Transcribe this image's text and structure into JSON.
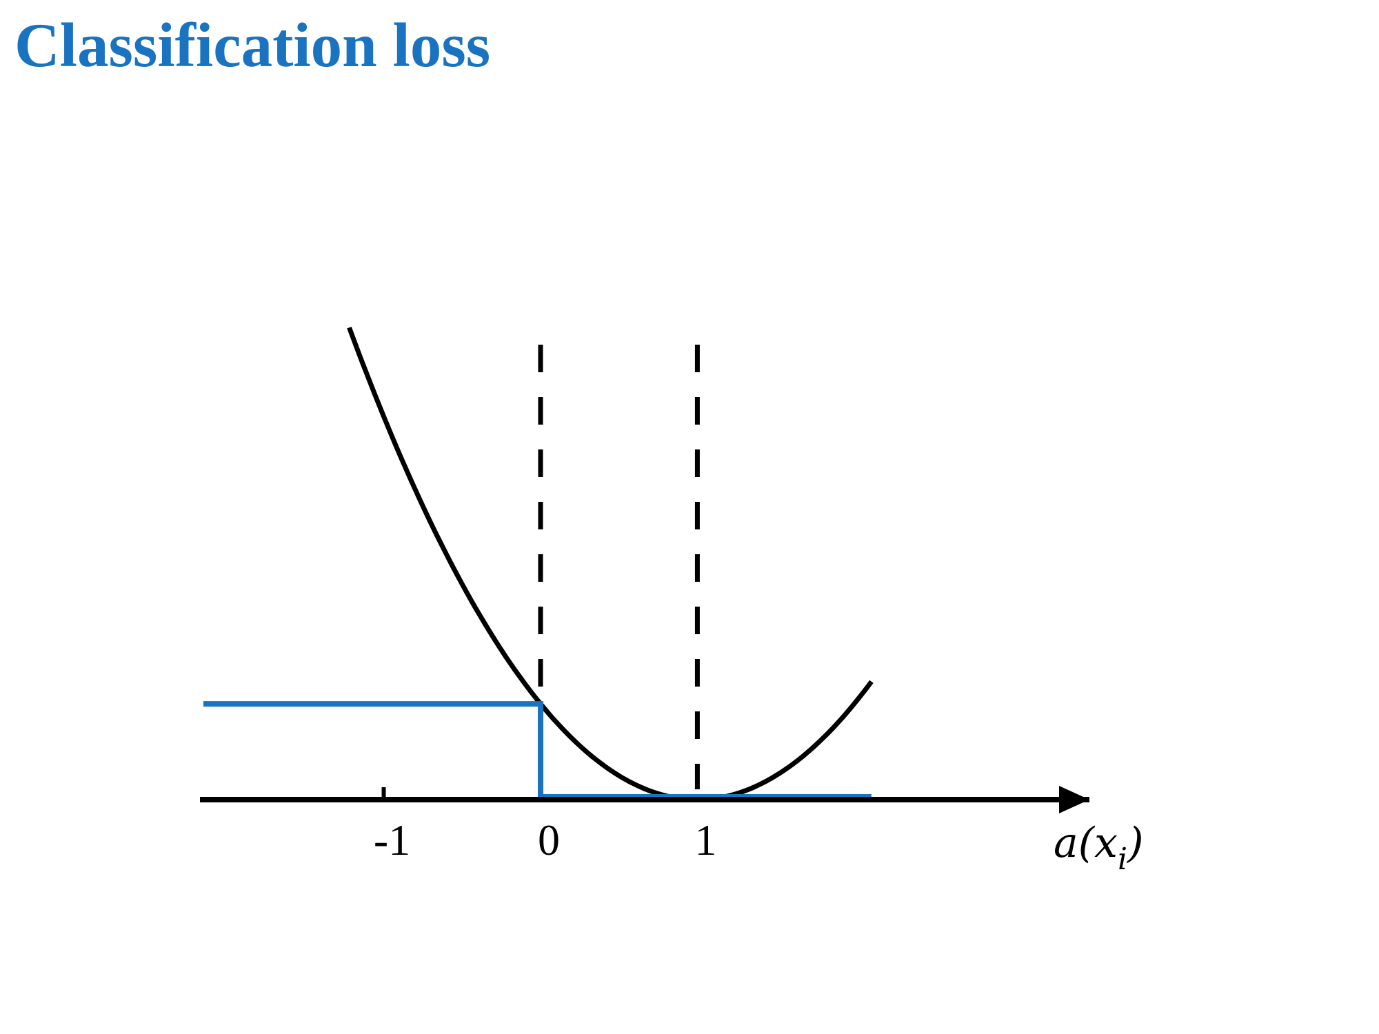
{
  "slide": {
    "title": "Classification loss"
  },
  "colors": {
    "title": "#1a73c0",
    "zero_one_loss": "#1a73c0",
    "quadratic_loss": "#000000",
    "axis": "#000000"
  },
  "chart_data": {
    "type": "line",
    "title": "Classification loss",
    "xlabel": "a(x_i)",
    "xlabel_parts": {
      "main_left": "a(",
      "main_var": "x",
      "sub": "i",
      "main_right": ")"
    },
    "ylabel": "",
    "xlim": [
      -2.15,
      3.5
    ],
    "ylim": [
      0,
      4.75
    ],
    "x_ticks": [
      {
        "value": -1,
        "label": "-1"
      },
      {
        "value": 0,
        "label": "0"
      },
      {
        "value": 1,
        "label": "1"
      }
    ],
    "reference_lines": [
      {
        "x": 0,
        "style": "dashed"
      },
      {
        "x": 1,
        "style": "dashed"
      }
    ],
    "grid": false,
    "legend": "none",
    "series": [
      {
        "kind": "quadratic",
        "formula": "(1 - a)^2",
        "x_range": [
          -1.22,
          2.11
        ],
        "color": "#000000"
      },
      {
        "kind": "step",
        "points": [
          [
            -2.15,
            1
          ],
          [
            0,
            1
          ],
          [
            0,
            0
          ],
          [
            2.11,
            0
          ]
        ],
        "color": "#1a73c0"
      }
    ]
  }
}
